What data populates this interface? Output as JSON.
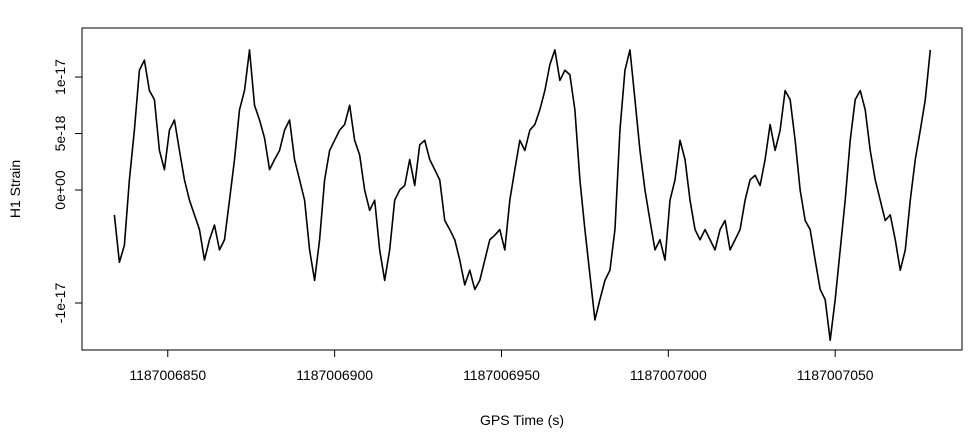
{
  "chart_data": {
    "type": "line",
    "xlabel": "GPS Time (s)",
    "ylabel": "H1 Strain",
    "color": "#000000",
    "xlim": [
      1187006824.3,
      1187007088
    ],
    "ylim": [
      -1.416e-17,
      1.434e-17
    ],
    "xticks": [
      1187006850,
      1187006900,
      1187006950,
      1187007000,
      1187007050
    ],
    "yticks": [
      {
        "value": -1e-17,
        "label": "-1e-17"
      },
      {
        "value": 0,
        "label": "0e+00"
      },
      {
        "value": 5e-18,
        "label": "5e-18"
      },
      {
        "value": 1e-17,
        "label": "1e-17"
      }
    ],
    "x": [
      1187006834,
      1187006835.5,
      1187006837,
      1187006838.5,
      1187006840,
      1187006841.5,
      1187006843,
      1187006844.5,
      1187006846,
      1187006847.5,
      1187006849,
      1187006850.5,
      1187006852,
      1187006853.5,
      1187006855,
      1187006856.5,
      1187006858,
      1187006859.5,
      1187006861,
      1187006862.5,
      1187006864,
      1187006865.5,
      1187006867,
      1187006868.5,
      1187006870,
      1187006871.5,
      1187006873,
      1187006874.5,
      1187006876,
      1187006877.5,
      1187006879,
      1187006880.5,
      1187006882,
      1187006883.5,
      1187006885,
      1187006886.5,
      1187006888,
      1187006889.5,
      1187006891,
      1187006892.5,
      1187006894,
      1187006895.5,
      1187006897,
      1187006898.5,
      1187006900,
      1187006901.5,
      1187006903,
      1187006904.5,
      1187006906,
      1187006907.5,
      1187006909,
      1187006910.5,
      1187006912,
      1187006913.5,
      1187006915,
      1187006916.5,
      1187006918,
      1187006919.5,
      1187006921,
      1187006922.5,
      1187006924,
      1187006925.5,
      1187006927,
      1187006928.5,
      1187006930,
      1187006931.5,
      1187006933,
      1187006934.5,
      1187006936,
      1187006937.5,
      1187006939,
      1187006940.5,
      1187006942,
      1187006943.5,
      1187006945,
      1187006946.5,
      1187006948,
      1187006949.5,
      1187006951,
      1187006952.5,
      1187006954,
      1187006955.5,
      1187006957,
      1187006958.5,
      1187006960,
      1187006961.5,
      1187006963,
      1187006964.5,
      1187006966,
      1187006967.5,
      1187006969,
      1187006970.5,
      1187006972,
      1187006973.5,
      1187006975,
      1187006976.5,
      1187006978,
      1187006979.5,
      1187006981,
      1187006982.5,
      1187006984,
      1187006985.5,
      1187006987,
      1187006988.5,
      1187006990,
      1187006991.5,
      1187006993,
      1187006994.5,
      1187006996,
      1187006997.5,
      1187006999,
      1187007000.5,
      1187007002,
      1187007003.5,
      1187007005,
      1187007006.5,
      1187007008,
      1187007009.5,
      1187007011,
      1187007012.5,
      1187007014,
      1187007015.5,
      1187007017,
      1187007018.5,
      1187007020,
      1187007021.5,
      1187007023,
      1187007024.5,
      1187007026,
      1187007027.5,
      1187007029,
      1187007030.5,
      1187007032,
      1187007033.5,
      1187007035,
      1187007036.5,
      1187007038,
      1187007039.5,
      1187007041,
      1187007042.5,
      1187007044,
      1187007045.5,
      1187007047,
      1187007048.5,
      1187007050,
      1187007051.5,
      1187007053,
      1187007054.5,
      1187007056,
      1187007057.5,
      1187007059,
      1187007060.5,
      1187007062,
      1187007063.5,
      1187007065,
      1187007066.5,
      1187007068,
      1187007069.5,
      1187007071,
      1187007072.5,
      1187007074,
      1187007075.5,
      1187007077,
      1187007078.5
    ],
    "values": [
      -2.2e-18,
      -6.4e-18,
      -4.9e-18,
      9e-19,
      5.3e-18,
      1.06e-17,
      1.15e-17,
      8.8e-18,
      8e-18,
      3.5e-18,
      1.8e-18,
      5.3e-18,
      6.2e-18,
      3.5e-18,
      9e-19,
      -9e-19,
      -2.2e-18,
      -3.5e-18,
      -6.2e-18,
      -4.4e-18,
      -3.1e-18,
      -5.3e-18,
      -4.4e-18,
      -9e-19,
      2.7e-18,
      7.1e-18,
      8.8e-18,
      1.24e-17,
      7.5e-18,
      6.2e-18,
      4.6e-18,
      1.8e-18,
      2.7e-18,
      3.5e-18,
      5.3e-18,
      6.2e-18,
      2.7e-18,
      9e-19,
      -9e-19,
      -5.3e-18,
      -8e-18,
      -4.4e-18,
      9e-19,
      3.5e-18,
      4.4e-18,
      5.3e-18,
      5.8e-18,
      7.5e-18,
      4.4e-18,
      3.1e-18,
      0,
      -1.8e-18,
      -9e-19,
      -5.3e-18,
      -8e-18,
      -5.3e-18,
      -9e-19,
      0,
      4e-19,
      2.7e-18,
      4e-19,
      4e-18,
      4.4e-18,
      2.7e-18,
      1.8e-18,
      9e-19,
      -2.7e-18,
      -3.5e-18,
      -4.4e-18,
      -6.2e-18,
      -8.4e-18,
      -7.1e-18,
      -8.8e-18,
      -8e-18,
      -6.2e-18,
      -4.4e-18,
      -4e-18,
      -3.5e-18,
      -5.3e-18,
      -9e-19,
      1.8e-18,
      4.4e-18,
      3.5e-18,
      5.3e-18,
      5.8e-18,
      7.1e-18,
      8.8e-18,
      1.11e-17,
      1.24e-17,
      9.7e-18,
      1.06e-17,
      1.02e-17,
      7.1e-18,
      9e-19,
      -3.5e-18,
      -7.5e-18,
      -1.15e-17,
      -9.7e-18,
      -8e-18,
      -7.1e-18,
      -3.5e-18,
      5.3e-18,
      1.06e-17,
      1.24e-17,
      8e-18,
      3.5e-18,
      0,
      -2.7e-18,
      -5.3e-18,
      -4.4e-18,
      -6.2e-18,
      -9e-19,
      9e-19,
      4.4e-18,
      2.7e-18,
      -9e-19,
      -3.5e-18,
      -4.4e-18,
      -3.5e-18,
      -4.4e-18,
      -5.3e-18,
      -3.5e-18,
      -2.7e-18,
      -5.3e-18,
      -4.4e-18,
      -3.5e-18,
      -9e-19,
      9e-19,
      1.3e-18,
      4e-19,
      2.7e-18,
      5.8e-18,
      3.5e-18,
      5.3e-18,
      8.8e-18,
      8e-18,
      4.4e-18,
      0,
      -2.7e-18,
      -3.5e-18,
      -6.2e-18,
      -8.8e-18,
      -9.7e-18,
      -1.33e-17,
      -9.7e-18,
      -5.3e-18,
      -9e-19,
      4.4e-18,
      8e-18,
      8.8e-18,
      7.1e-18,
      3.5e-18,
      9e-19,
      -9e-19,
      -2.7e-18,
      -2.2e-18,
      -4.4e-18,
      -7.1e-18,
      -5.3e-18,
      -9e-19,
      2.7e-18,
      5.3e-18,
      8e-18,
      1.24e-17
    ]
  }
}
